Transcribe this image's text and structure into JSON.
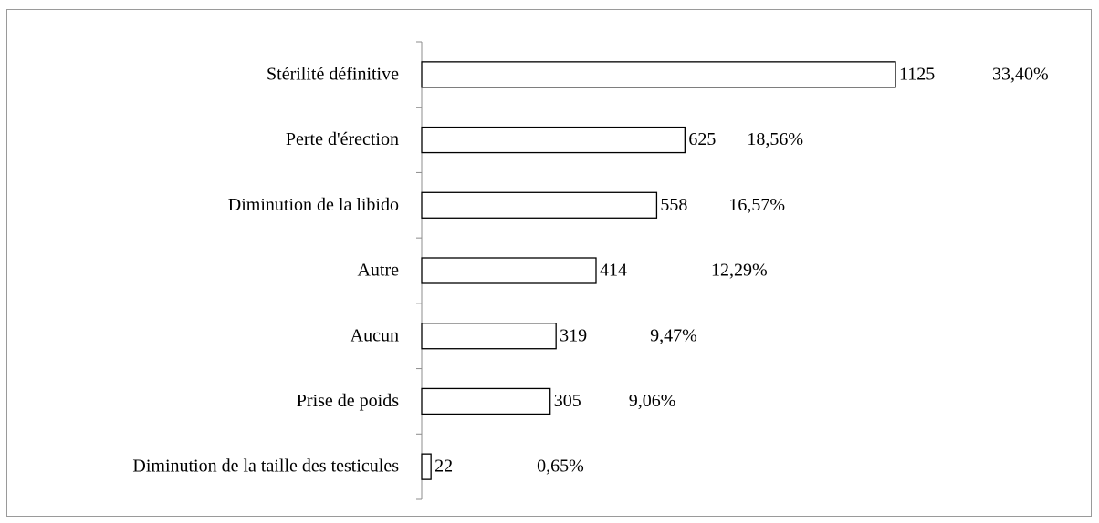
{
  "chart_data": {
    "type": "bar",
    "orientation": "horizontal",
    "categories": [
      "Stérilité définitive",
      "Perte d'érection",
      "Diminution de la libido",
      "Autre",
      "Aucun",
      "Prise de poids",
      "Diminution de la taille des testicules"
    ],
    "values": [
      1125,
      625,
      558,
      414,
      319,
      305,
      22
    ],
    "percent_labels": [
      "33,40%",
      "18,56%",
      "16,57%",
      "12,29%",
      "9,47%",
      "9,06%",
      "0,65%"
    ],
    "color": "#ffffff",
    "edge_color": "#000000",
    "grid": false
  }
}
